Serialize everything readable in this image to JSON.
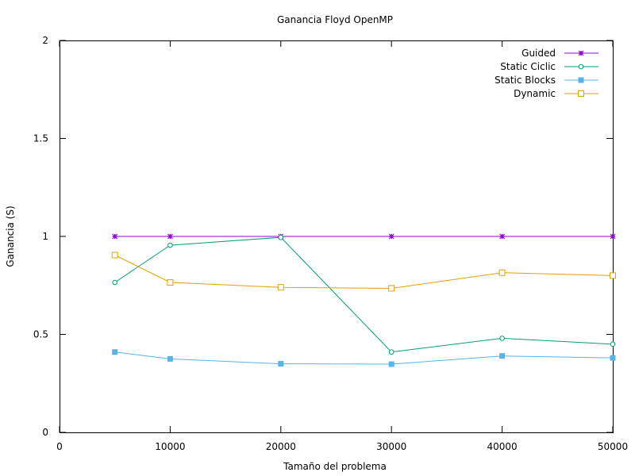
{
  "chart_data": {
    "type": "line",
    "title": "Ganancia Floyd OpenMP",
    "xlabel": "Tamaño del problema",
    "ylabel": "Ganancia (S)",
    "xlim": [
      0,
      50000
    ],
    "ylim": [
      0,
      2
    ],
    "xticks": [
      "0",
      "10000",
      "20000",
      "30000",
      "40000",
      "50000"
    ],
    "yticks": [
      "0",
      "0.5",
      "1",
      "1.5",
      "2"
    ],
    "grid": false,
    "legend_position": "top-right",
    "x": [
      5000,
      10000,
      20000,
      30000,
      40000,
      50000
    ],
    "series": [
      {
        "name": "Guided",
        "color": "#9400d3",
        "marker": "star",
        "values": [
          1.0,
          1.0,
          1.0,
          1.0,
          1.0,
          1.0
        ]
      },
      {
        "name": "Static Ciclic",
        "color": "#009e73",
        "marker": "open-circle",
        "values": [
          0.765,
          0.955,
          0.995,
          0.41,
          0.48,
          0.45
        ]
      },
      {
        "name": "Static Blocks",
        "color": "#56b4e9",
        "marker": "filled-square",
        "values": [
          0.41,
          0.375,
          0.35,
          0.348,
          0.39,
          0.38
        ]
      },
      {
        "name": "Dynamic",
        "color": "#e69f00",
        "marker": "open-square",
        "values": [
          0.905,
          0.765,
          0.74,
          0.735,
          0.815,
          0.8
        ]
      }
    ]
  }
}
